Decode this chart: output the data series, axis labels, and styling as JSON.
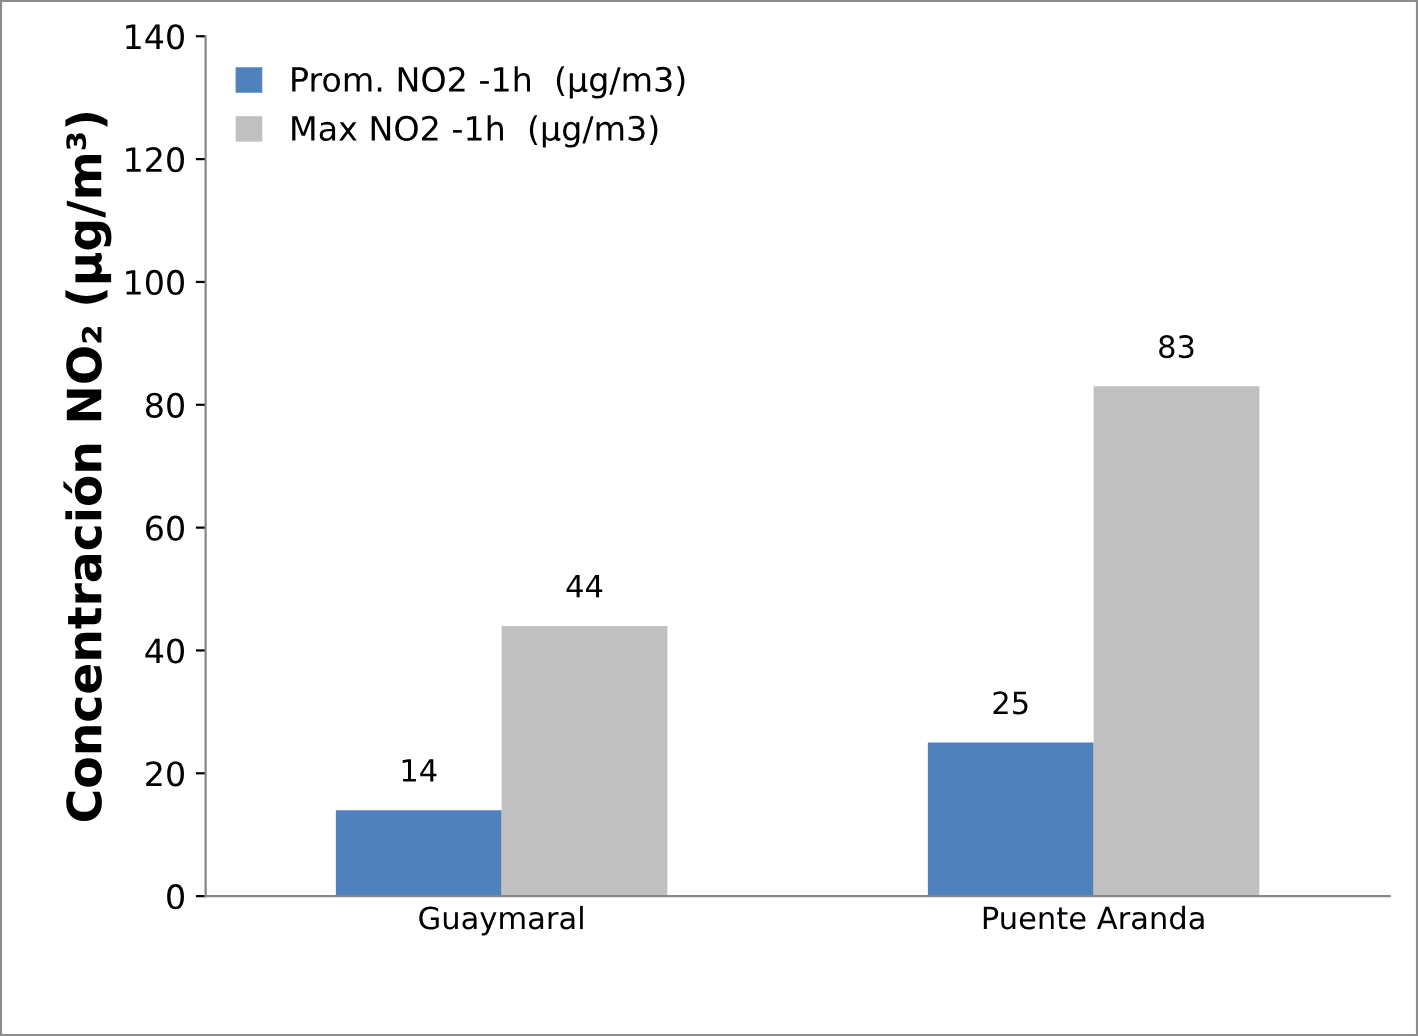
{
  "chart_data": {
    "type": "bar",
    "ylabel": "Concentración NO₂ (µg/m³)",
    "categories": [
      "Guaymaral",
      "Puente Aranda"
    ],
    "series": [
      {
        "name": "Prom. NO2 -1h  (µg/m3)",
        "color": "#4f81bd",
        "values": [
          14,
          25
        ]
      },
      {
        "name": "Max NO2 -1h  (µg/m3)",
        "color": "#c0c0c0",
        "values": [
          44,
          83
        ]
      }
    ],
    "ylim": [
      0,
      140
    ],
    "yticks": [
      0,
      20,
      40,
      60,
      80,
      100,
      120,
      140
    ],
    "data_labels": true,
    "legend": "top left",
    "grid": false
  }
}
